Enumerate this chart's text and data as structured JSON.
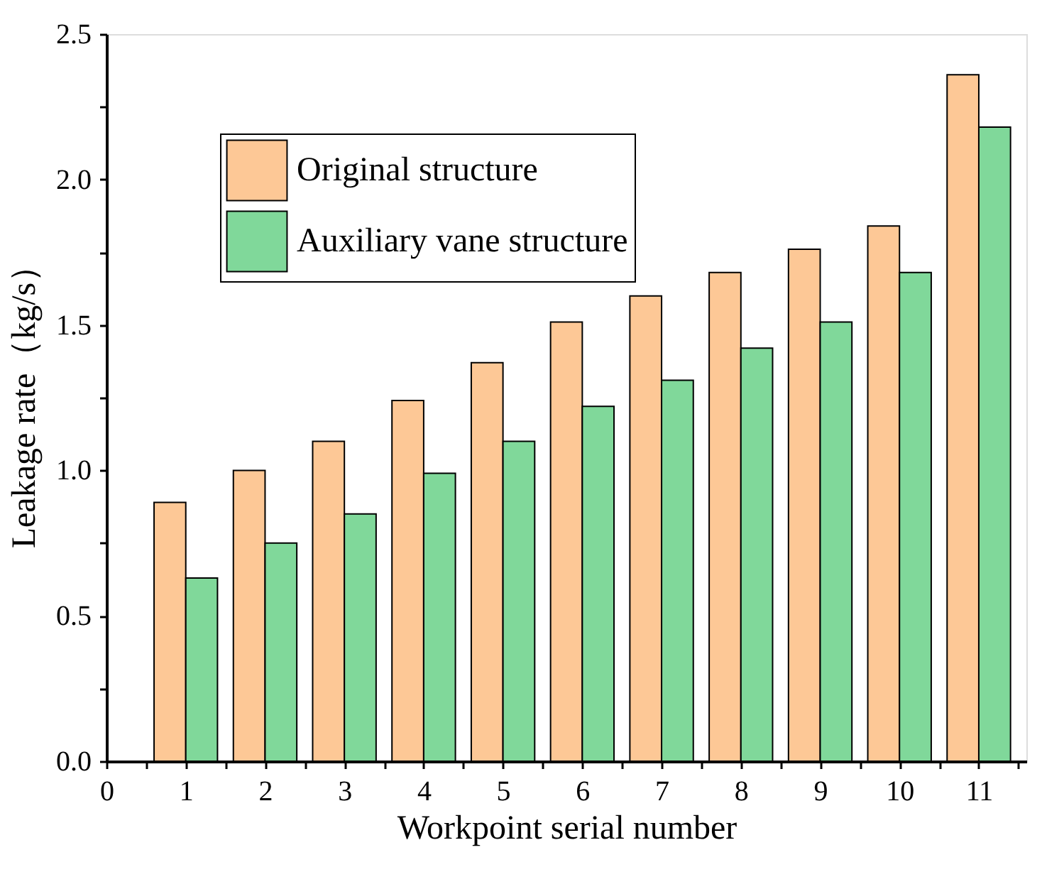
{
  "chart_data": {
    "type": "bar",
    "xlabel": "Workpoint serial number",
    "ylabel": "Leakage rate（kg/s）",
    "x": [
      1,
      2,
      3,
      4,
      5,
      6,
      7,
      8,
      9,
      10,
      11
    ],
    "series": [
      {
        "name": "Original structure",
        "color": "#fdc896",
        "values": [
          0.89,
          1.0,
          1.1,
          1.24,
          1.37,
          1.51,
          1.6,
          1.68,
          1.76,
          1.84,
          2.36
        ]
      },
      {
        "name": "Auxiliary vane structure",
        "color": "#80d89a",
        "values": [
          0.63,
          0.75,
          0.85,
          0.99,
          1.1,
          1.22,
          1.31,
          1.42,
          1.51,
          1.68,
          2.18
        ]
      }
    ],
    "xlim": [
      0,
      11.6
    ],
    "xticks": [
      0,
      {
        "value": 0.5,
        "label": null
      },
      1,
      {
        "value": 1.5,
        "label": null
      },
      2,
      {
        "value": 2.5,
        "label": null
      },
      3,
      {
        "value": 3.5,
        "label": null
      },
      4,
      {
        "value": 4.5,
        "label": null
      },
      5,
      {
        "value": 5.5,
        "label": null
      },
      6,
      {
        "value": 6.5,
        "label": null
      },
      7,
      {
        "value": 7.5,
        "label": null
      },
      8,
      {
        "value": 8.5,
        "label": null
      },
      9,
      {
        "value": 9.5,
        "label": null
      },
      10,
      {
        "value": 10.5,
        "label": null
      },
      11,
      {
        "value": 11.5,
        "label": null
      }
    ],
    "ylim": [
      0,
      2.5
    ],
    "yticks": [
      {
        "value": 0,
        "label": "0.0"
      },
      {
        "value": 0.25,
        "label": null
      },
      0.5,
      {
        "value": 0.75,
        "label": null
      },
      {
        "value": 1,
        "label": "1.0"
      },
      {
        "value": 1.25,
        "label": null
      },
      1.5,
      {
        "value": 1.75,
        "label": null
      },
      {
        "value": 2,
        "label": "2.0"
      },
      {
        "value": 2.25,
        "label": null
      },
      2.5
    ],
    "grid": false,
    "legend": "top left"
  }
}
